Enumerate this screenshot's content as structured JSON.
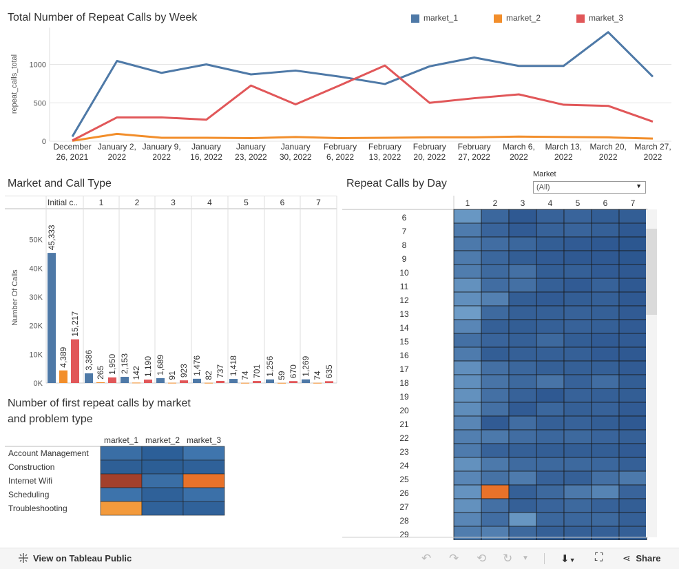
{
  "line_chart": {
    "title": "Total Number of Repeat Calls by Week",
    "legend": [
      {
        "label": "market_1",
        "color": "#4e79a7"
      },
      {
        "label": "market_2",
        "color": "#f28e2b"
      },
      {
        "label": "market_3",
        "color": "#e15759"
      }
    ]
  },
  "bar_chart": {
    "title": "Market and Call Type",
    "ylabel": "Number Of Calls"
  },
  "heat_day": {
    "title": "Repeat Calls by Day"
  },
  "heat_problem": {
    "title_line1": "Number of first repeat calls by market",
    "title_line2": "and problem type"
  },
  "filter": {
    "label": "Market",
    "value": "(All)"
  },
  "footer": {
    "view_label": "View on Tableau Public",
    "share_label": "Share"
  },
  "chart_data": [
    {
      "type": "line",
      "title": "Total Number of Repeat Calls by Week",
      "ylabel": "repeat_calls_total",
      "xlabel": "",
      "x": [
        "December 26, 2021",
        "January 2, 2022",
        "January 9, 2022",
        "January 16, 2022",
        "January 23, 2022",
        "January 30, 2022",
        "February 6, 2022",
        "February 13, 2022",
        "February 20, 2022",
        "February 27, 2022",
        "March 6, 2022",
        "March 13, 2022",
        "March 20, 2022",
        "March 27, 2022"
      ],
      "x_ticks": [
        [
          "December",
          "26, 2021"
        ],
        [
          "January 2,",
          "2022"
        ],
        [
          "January 9,",
          "2022"
        ],
        [
          "January",
          "16, 2022"
        ],
        [
          "January",
          "23, 2022"
        ],
        [
          "January",
          "30, 2022"
        ],
        [
          "February",
          "6, 2022"
        ],
        [
          "February",
          "13, 2022"
        ],
        [
          "February",
          "20, 2022"
        ],
        [
          "February",
          "27, 2022"
        ],
        [
          "March 6,",
          "2022"
        ],
        [
          "March 13,",
          "2022"
        ],
        [
          "March 20,",
          "2022"
        ],
        [
          "March 27,",
          "2022"
        ]
      ],
      "y_ticks": [
        0,
        500,
        1000
      ],
      "y_tick_labels": [
        "0",
        "500",
        "1000"
      ],
      "ylim": [
        0,
        1480
      ],
      "grid": true,
      "legend_position": "top-right",
      "series": [
        {
          "name": "market_1",
          "color": "#4e79a7",
          "values": [
            60,
            1045,
            890,
            1000,
            870,
            920,
            840,
            745,
            975,
            1090,
            980,
            980,
            1420,
            840
          ]
        },
        {
          "name": "market_2",
          "color": "#f28e2b",
          "values": [
            5,
            95,
            45,
            45,
            40,
            55,
            40,
            45,
            50,
            50,
            60,
            55,
            50,
            35
          ]
        },
        {
          "name": "market_3",
          "color": "#e15759",
          "values": [
            10,
            310,
            310,
            280,
            725,
            480,
            730,
            985,
            500,
            560,
            610,
            475,
            460,
            255
          ]
        }
      ]
    },
    {
      "type": "bar",
      "title": "Market and Call Type",
      "ylabel": "Number Of Calls",
      "xlabel": "",
      "categories": [
        "Initial c..",
        "1",
        "2",
        "3",
        "4",
        "5",
        "6",
        "7"
      ],
      "y_ticks": [
        0,
        10000,
        20000,
        30000,
        40000,
        50000
      ],
      "y_tick_labels": [
        "0K",
        "10K",
        "20K",
        "30K",
        "40K",
        "50K"
      ],
      "ylim": [
        0,
        60000
      ],
      "series": [
        {
          "name": "market_1",
          "color": "#4e79a7",
          "values": [
            45333,
            3386,
            2153,
            1689,
            1476,
            1418,
            1256,
            1269
          ],
          "labels": [
            "45,333",
            "3,386",
            "2,153",
            "1,689",
            "1,476",
            "1,418",
            "1,256",
            "1,269"
          ]
        },
        {
          "name": "market_2",
          "color": "#f28e2b",
          "values": [
            4389,
            265,
            142,
            91,
            82,
            74,
            59,
            74
          ],
          "labels": [
            "4,389",
            "265",
            "142",
            "91",
            "82",
            "74",
            "59",
            "74"
          ]
        },
        {
          "name": "market_3",
          "color": "#e15759",
          "values": [
            15217,
            1950,
            1190,
            923,
            737,
            701,
            670,
            635
          ],
          "labels": [
            "15,217",
            "1,950",
            "1,190",
            "923",
            "737",
            "701",
            "670",
            "635"
          ]
        }
      ]
    },
    {
      "type": "heatmap",
      "title": "Repeat Calls by Day",
      "columns": [
        "1",
        "2",
        "3",
        "4",
        "5",
        "6",
        "7"
      ],
      "rows": [
        "6",
        "7",
        "8",
        "9",
        "10",
        "11",
        "12",
        "13",
        "14",
        "15",
        "16",
        "17",
        "18",
        "19",
        "20",
        "21",
        "22",
        "23",
        "24",
        "25",
        "26",
        "27",
        "28",
        "29"
      ],
      "intensity": [
        [
          0.35,
          0.78,
          0.9,
          0.82,
          0.8,
          0.86,
          0.86
        ],
        [
          0.6,
          0.8,
          0.88,
          0.82,
          0.8,
          0.84,
          0.9
        ],
        [
          0.62,
          0.72,
          0.78,
          0.86,
          0.88,
          0.9,
          0.92
        ],
        [
          0.6,
          0.78,
          0.86,
          0.88,
          0.9,
          0.9,
          0.92
        ],
        [
          0.58,
          0.75,
          0.7,
          0.86,
          0.84,
          0.88,
          0.9
        ],
        [
          0.4,
          0.72,
          0.7,
          0.84,
          0.88,
          0.82,
          0.9
        ],
        [
          0.42,
          0.55,
          0.86,
          0.88,
          0.86,
          0.84,
          0.9
        ],
        [
          0.3,
          0.75,
          0.84,
          0.84,
          0.82,
          0.84,
          0.88
        ],
        [
          0.5,
          0.84,
          0.86,
          0.84,
          0.82,
          0.84,
          0.88
        ],
        [
          0.7,
          0.8,
          0.84,
          0.76,
          0.86,
          0.88,
          0.88
        ],
        [
          0.6,
          0.86,
          0.84,
          0.84,
          0.84,
          0.88,
          0.9
        ],
        [
          0.42,
          0.7,
          0.78,
          0.84,
          0.84,
          0.84,
          0.88
        ],
        [
          0.42,
          0.66,
          0.76,
          0.66,
          0.82,
          0.72,
          0.86
        ],
        [
          0.4,
          0.7,
          0.82,
          0.9,
          0.82,
          0.84,
          0.86
        ],
        [
          0.44,
          0.7,
          0.88,
          0.78,
          0.84,
          0.82,
          0.88
        ],
        [
          0.5,
          0.88,
          0.72,
          0.84,
          0.82,
          0.86,
          0.9
        ],
        [
          0.56,
          0.62,
          0.72,
          0.78,
          0.76,
          0.8,
          0.84
        ],
        [
          0.6,
          0.82,
          0.84,
          0.86,
          0.86,
          0.86,
          0.88
        ],
        [
          0.4,
          0.62,
          0.74,
          0.76,
          0.76,
          0.78,
          0.84
        ],
        [
          0.5,
          0.68,
          0.6,
          0.82,
          0.84,
          0.7,
          0.62
        ],
        [
          0.38,
          "hot",
          0.84,
          0.76,
          0.62,
          0.52,
          0.8
        ],
        [
          0.4,
          0.7,
          0.84,
          0.8,
          0.76,
          0.82,
          0.86
        ],
        [
          0.5,
          0.72,
          0.36,
          0.78,
          0.78,
          0.76,
          0.84
        ],
        [
          0.58,
          0.56,
          0.76,
          0.84,
          0.84,
          0.84,
          0.84
        ]
      ]
    },
    {
      "type": "heatmap",
      "title": "Number of first repeat calls by market and problem type",
      "columns": [
        "market_1",
        "market_2",
        "market_3"
      ],
      "rows": [
        "Account Management",
        "Construction",
        "Internet Wifi",
        "Scheduling",
        "Troubleshooting"
      ],
      "colors": [
        [
          "#3a6ea5",
          "#2c5f98",
          "#3f75ad"
        ],
        [
          "#2e5f96",
          "#2c5e95",
          "#2f6199"
        ],
        [
          "#a3402c",
          "#3a6ea5",
          "#e8722a"
        ],
        [
          "#3d73ab",
          "#2f6199",
          "#3b70a8"
        ],
        [
          "#f39a3c",
          "#30629a",
          "#30629a"
        ]
      ]
    }
  ]
}
